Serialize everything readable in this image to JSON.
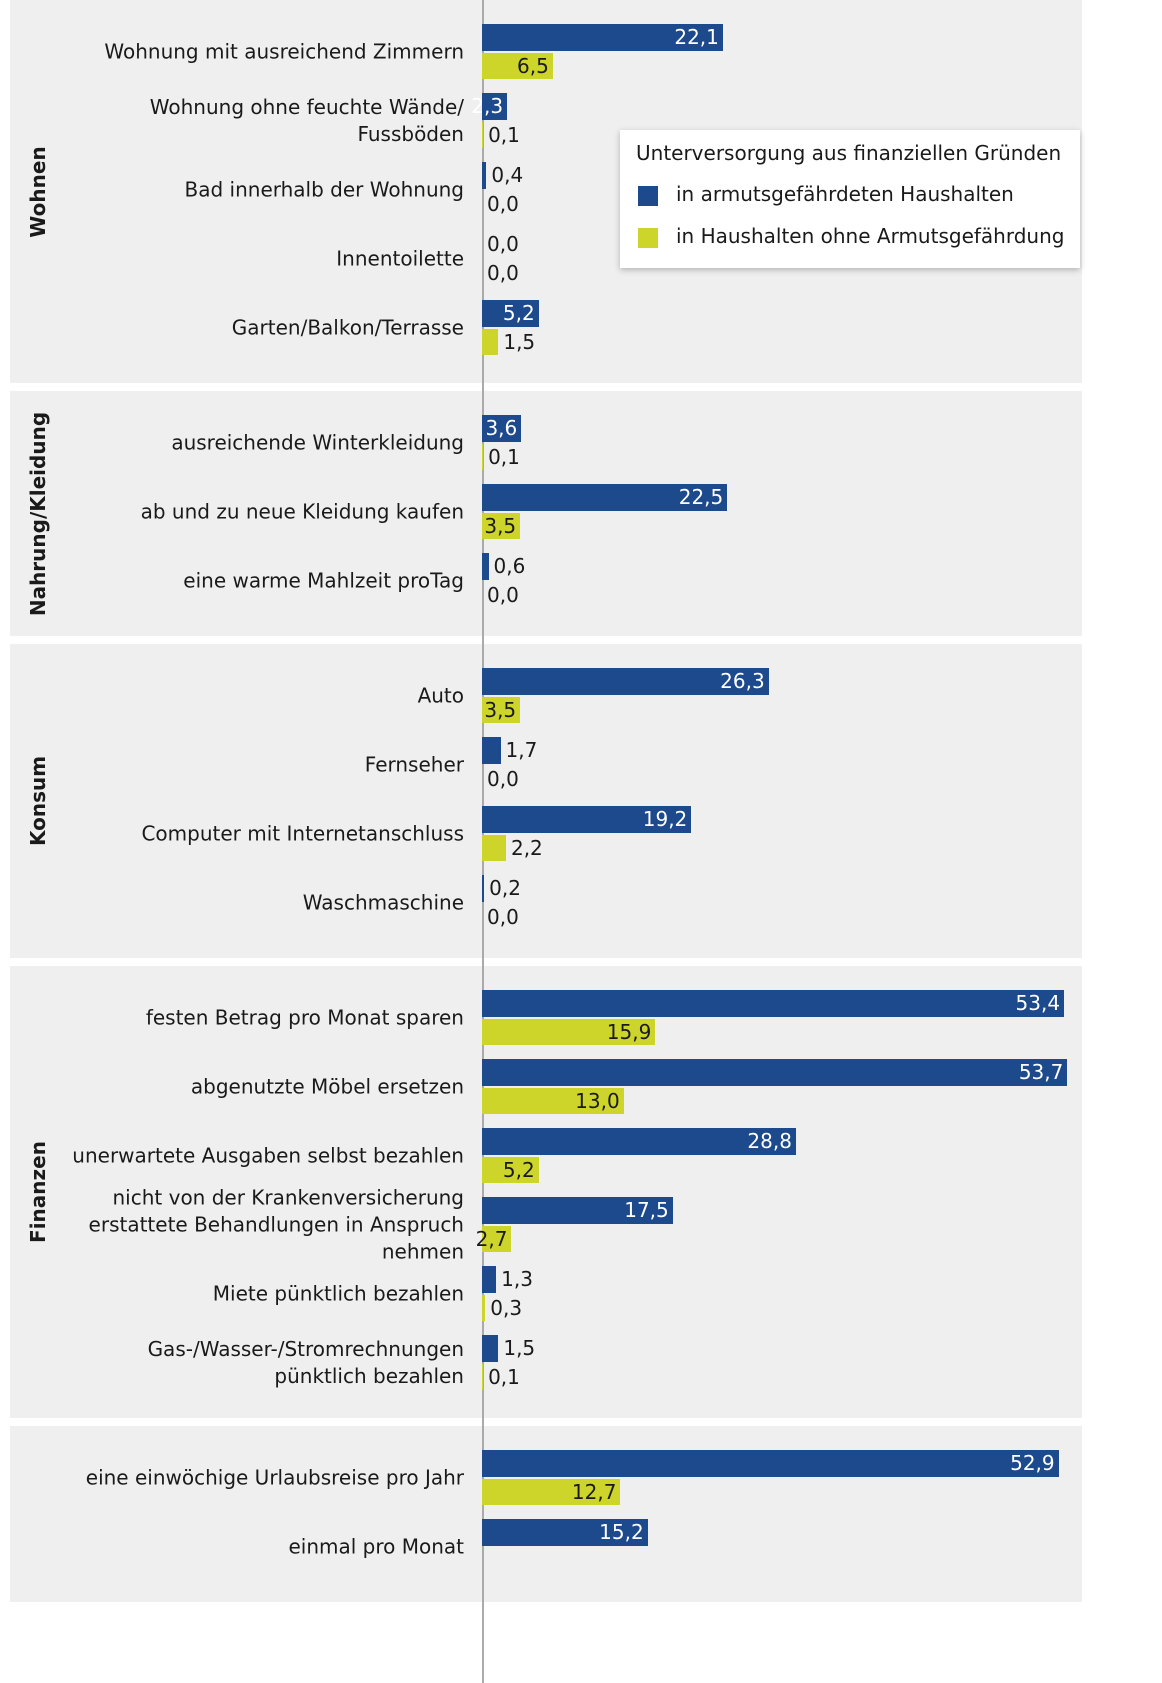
{
  "chart_data": {
    "type": "bar",
    "orientation": "horizontal",
    "categories": [
      "Wohnung mit ausreichend Zimmern",
      "Wohnung ohne feuchte Wände/\nFussböden",
      "Bad innerhalb der Wohnung",
      "Innentoilette",
      "Garten/Balkon/Terrasse",
      "ausreichende Winterkleidung",
      "ab und zu neue Kleidung kaufen",
      "eine warme Mahlzeit proTag",
      "Auto",
      "Fernseher",
      "Computer mit Internetanschluss",
      "Waschmaschine",
      "festen Betrag pro Monat sparen",
      "abgenutzte Möbel ersetzen",
      "unerwartete Ausgaben selbst bezahlen",
      "nicht von der Krankenversicherung\nerstattete Behandlungen in Anspruch\nnehmen",
      "Miete pünktlich bezahlen",
      "Gas-/Wasser-/Stromrechnungen\npünktlich bezahlen",
      "eine einwöchige Urlaubsreise pro Jahr",
      "einmal pro Monat"
    ],
    "category_groups": [
      "Wohnen",
      "Wohnen",
      "Wohnen",
      "Wohnen",
      "Wohnen",
      "Nahrung/Kleidung",
      "Nahrung/Kleidung",
      "Nahrung/Kleidung",
      "Konsum",
      "Konsum",
      "Konsum",
      "Konsum",
      "Finanzen",
      "Finanzen",
      "Finanzen",
      "Finanzen",
      "Finanzen",
      "Finanzen",
      null,
      null
    ],
    "series": [
      {
        "name": "in armutsgefährdeten Haushalten",
        "color": "#1d4a8c",
        "values": [
          22.1,
          2.3,
          0.4,
          0.0,
          5.2,
          3.6,
          22.5,
          0.6,
          26.3,
          1.7,
          19.2,
          0.2,
          53.4,
          53.7,
          28.8,
          17.5,
          1.3,
          1.5,
          52.9,
          15.2
        ],
        "value_labels": [
          "22,1",
          "2,3",
          "0,4",
          "0,0",
          "5,2",
          "3,6",
          "22,5",
          "0,6",
          "26,3",
          "1,7",
          "19,2",
          "0,2",
          "53,4",
          "53,7",
          "28,8",
          "17,5",
          "1,3",
          "1,5",
          "52,9",
          "15,2"
        ]
      },
      {
        "name": "in Haushalten ohne Armutsgefährdung",
        "color": "#cdd42a",
        "values": [
          6.5,
          0.1,
          0.0,
          0.0,
          1.5,
          0.1,
          3.5,
          0.0,
          3.5,
          0.0,
          2.2,
          0.0,
          15.9,
          13.0,
          5.2,
          2.7,
          0.3,
          0.1,
          12.7,
          null
        ],
        "value_labels": [
          "6,5",
          "0,1",
          "0,0",
          "0,0",
          "1,5",
          "0,1",
          "3,5",
          "0,0",
          "3,5",
          "0,0",
          "2,2",
          "0,0",
          "15,9",
          "13,0",
          "5,2",
          "2,7",
          "0,3",
          "0,1",
          "12,7",
          null
        ]
      }
    ],
    "legend_title": "Unterversorgung aus finanziellen Gründen",
    "legend": "upper right",
    "xlim": [
      0,
      60
    ],
    "grid": false
  }
}
